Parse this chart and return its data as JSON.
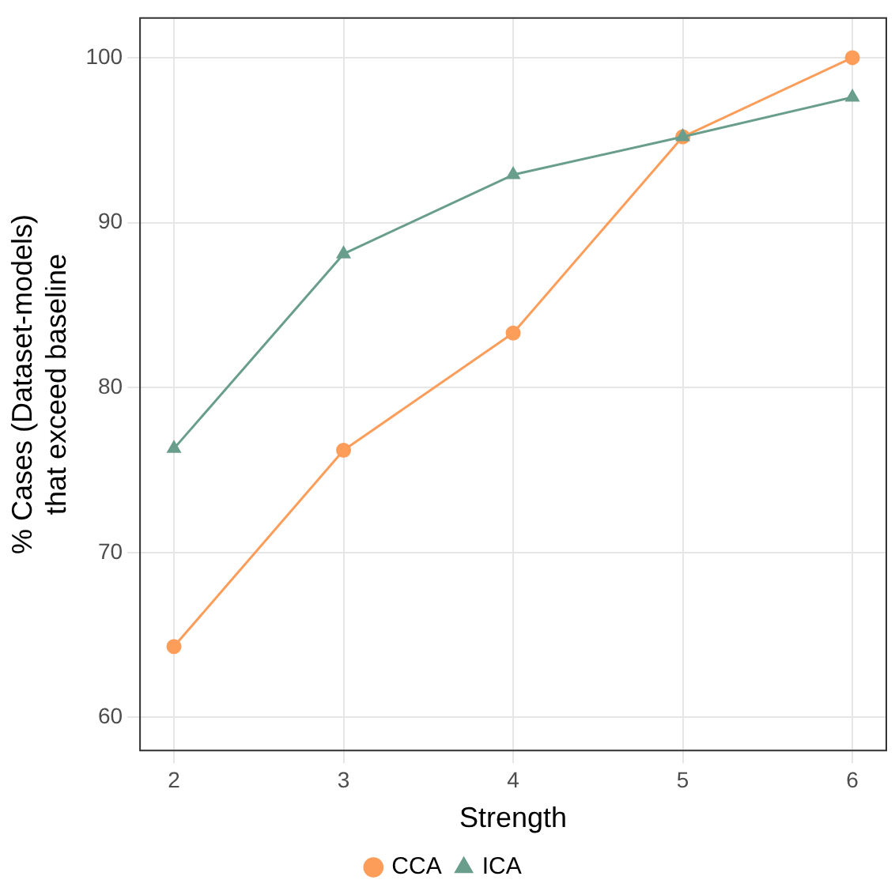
{
  "chart_data": {
    "type": "line",
    "xlabel": "Strength",
    "ylabel": "% Cases (Dataset-models)\nthat exceed baseline",
    "x": [
      2,
      3,
      4,
      5,
      6
    ],
    "xlim": [
      1.8,
      6.2
    ],
    "xticks": [
      2,
      3,
      4,
      5,
      6
    ],
    "ylim": [
      58,
      102.4
    ],
    "yticks": [
      60,
      70,
      80,
      90,
      100
    ],
    "series": [
      {
        "name": "CCA",
        "color": "#fc9d5a",
        "values": [
          64.3,
          76.2,
          83.3,
          95.2,
          100
        ],
        "marker": "circle"
      },
      {
        "name": "ICA",
        "color": "#6a9e8c",
        "values": [
          76.3,
          88.1,
          92.9,
          95.2,
          97.6
        ],
        "marker": "triangle"
      }
    ],
    "grid": true,
    "legend": "bottom",
    "line_style": "solid"
  }
}
